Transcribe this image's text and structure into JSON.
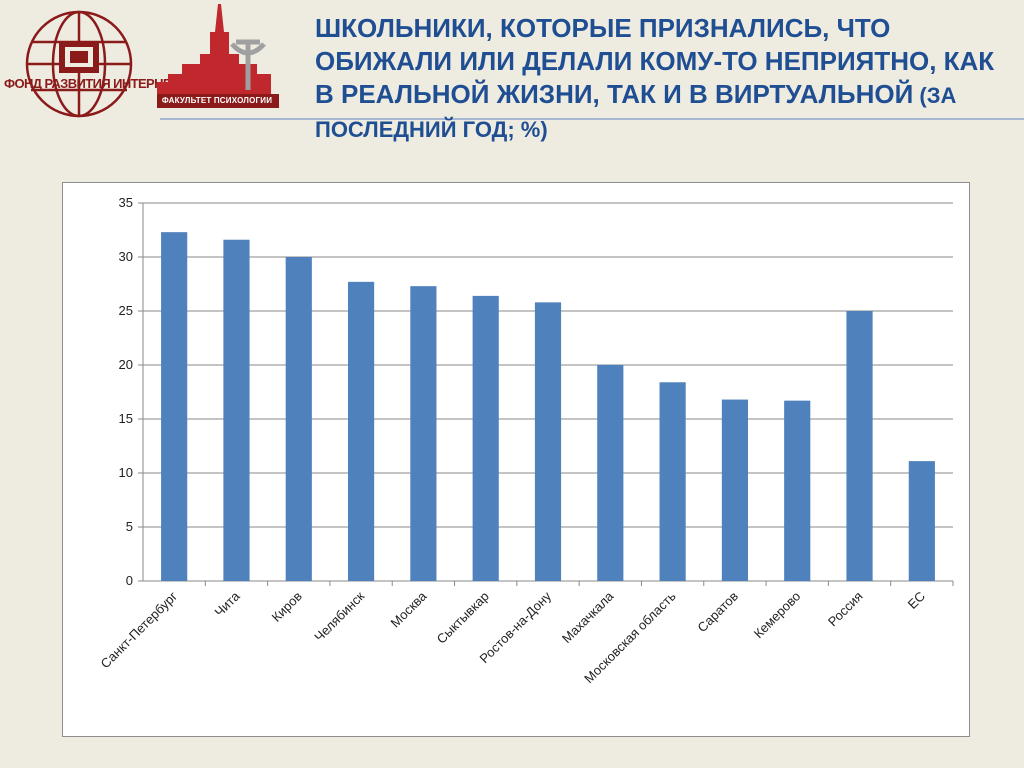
{
  "logos": {
    "left_caption": "ФОНД РАЗВИТИЯ ИНТЕРНЕТ",
    "left_icon": "globe-icon",
    "right_caption": "ФАКУЛЬТЕТ ПСИХОЛОГИИ",
    "right_icon": "university-building-icon"
  },
  "title": {
    "main": "ШКОЛЬНИКИ, КОТОРЫЕ ПРИЗНАЛИСЬ, ЧТО ОБИЖАЛИ ИЛИ ДЕЛАЛИ КОМУ-ТО НЕПРИЯТНО, КАК В РЕАЛЬНОЙ ЖИЗНИ, ТАК И В ВИРТУАЛЬНОЙ",
    "sub": " (ЗА ПОСЛЕДНИЙ ГОД; %)"
  },
  "colors": {
    "title": "#1f4e93",
    "bar": "#4f81bd",
    "logo": "#8b1a1a",
    "background": "#eeece1"
  },
  "chart_data": {
    "type": "bar",
    "categories": [
      "Санкт-Петербург",
      "Чита",
      "Киров",
      "Челябинск",
      "Москва",
      "Сыктывкар",
      "Ростов-на-Дону",
      "Махачкала",
      "Московская область",
      "Саратов",
      "Кемерово",
      "Россия",
      "ЕС"
    ],
    "values": [
      32.3,
      31.6,
      30.0,
      27.7,
      27.3,
      26.4,
      25.8,
      20.0,
      18.4,
      16.8,
      16.7,
      25.0,
      11.1
    ],
    "ylim": [
      0,
      35
    ],
    "yticks": [
      0,
      5,
      10,
      15,
      20,
      25,
      30,
      35
    ],
    "grid": true,
    "legend": "none"
  }
}
